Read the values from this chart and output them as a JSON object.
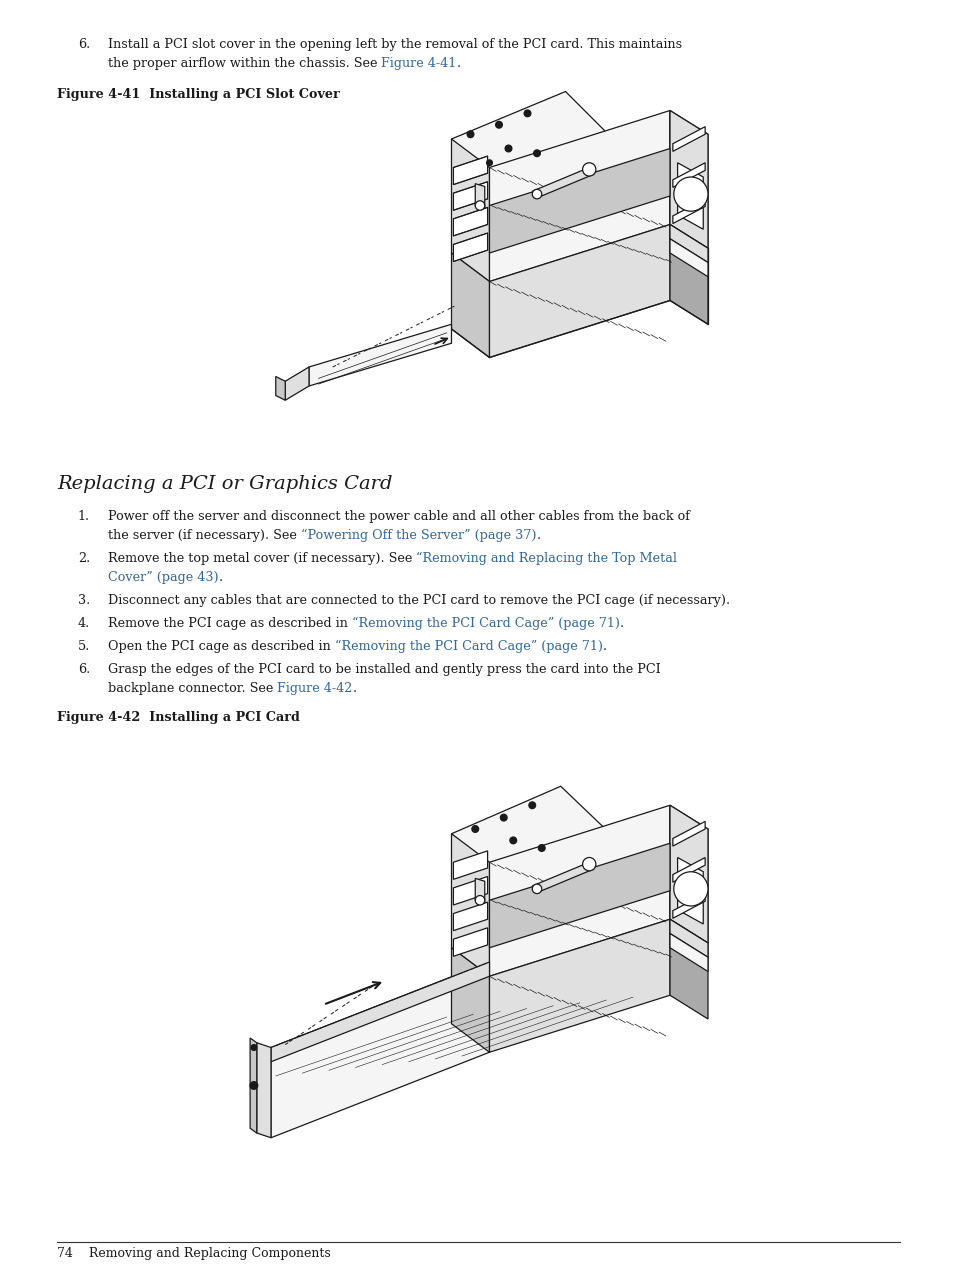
{
  "bg_color": "#ffffff",
  "text_color": "#1a1a1a",
  "link_color": "#336699",
  "font_size_body": 9.2,
  "font_size_label": 9.2,
  "font_size_section": 13.5,
  "font_size_footer": 9.0,
  "fig41_label": "Figure 4-41  Installing a PCI Slot Cover",
  "fig42_label": "Figure 4-42  Installing a PCI Card",
  "section_title": "Replacing a PCI or Graphics Card",
  "footer_text": "74    Removing and Replacing Components",
  "step6_line1": "Install a PCI slot cover in the opening left by the removal of the PCI card. This maintains",
  "step6_line2_pre": "the proper airflow within the chassis. See ",
  "step6_link": "Figure 4-41",
  "step6_suffix": ".",
  "item1_line1": "Power off the server and disconnect the power cable and all other cables from the back of",
  "item1_line2_pre": "the server (if necessary). See ",
  "item1_link": "“Powering Off the Server” (page 37)",
  "item1_suffix": ".",
  "item2_pre": "Remove the top metal cover (if necessary). See ",
  "item2_link_line1": "“Removing and Replacing the Top Metal",
  "item2_link_line2": "Cover” (page 43)",
  "item2_suffix": ".",
  "item3": "Disconnect any cables that are connected to the PCI card to remove the PCI cage (if necessary).",
  "item4_pre": "Remove the PCI cage as described in ",
  "item4_link": "“Removing the PCI Card Cage” (page 71)",
  "item4_suffix": ".",
  "item5_pre": "Open the PCI cage as described in ",
  "item5_link": "“Removing the PCI Card Cage” (page 71)",
  "item5_suffix": ".",
  "item6_line1": "Grasp the edges of the PCI card to be installed and gently press the card into the PCI",
  "item6_line2_pre": "backplane connector. See ",
  "item6_link": "Figure 4-42",
  "item6_suffix": "."
}
